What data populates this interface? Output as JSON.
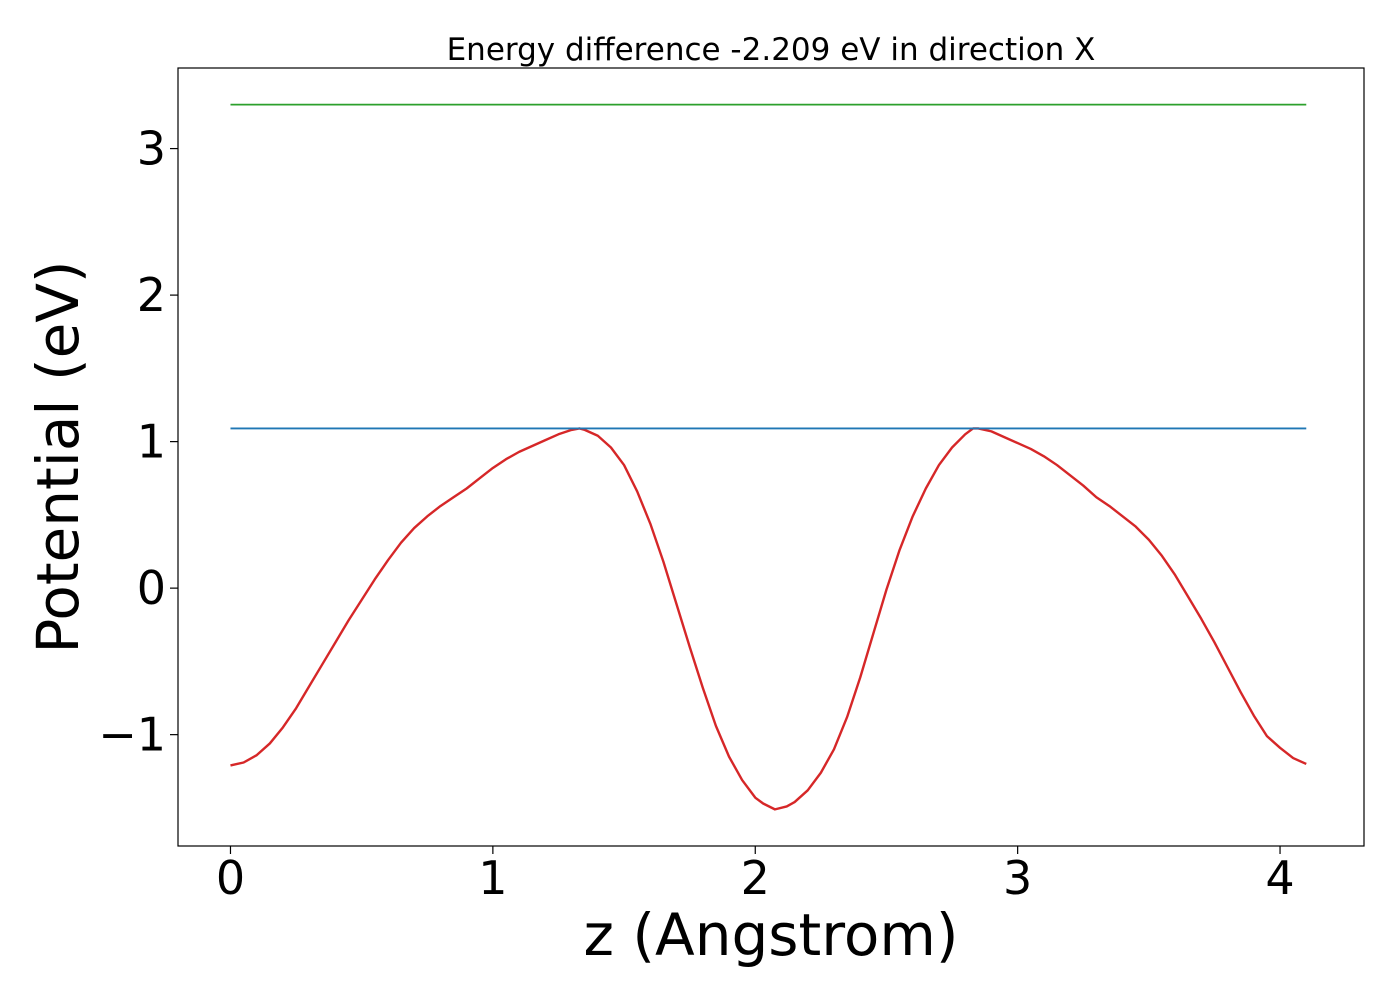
{
  "chart_data": {
    "type": "line",
    "title": "Energy difference -2.209 eV in direction X",
    "xlabel": "z (Angstrom)",
    "ylabel": "Potential (eV)",
    "xlim": [
      -0.2,
      4.32
    ],
    "ylim": [
      -1.76,
      3.55
    ],
    "xticks": [
      0,
      1,
      2,
      3,
      4
    ],
    "xtick_labels": [
      "0",
      "1",
      "2",
      "3",
      "4"
    ],
    "yticks": [
      -1,
      0,
      1,
      2,
      3
    ],
    "ytick_labels": [
      "−1",
      "0",
      "1",
      "2",
      "3"
    ],
    "grid": false,
    "legend": "none",
    "series": [
      {
        "color": "#d62728",
        "x": [
          0.0,
          0.05,
          0.1,
          0.15,
          0.2,
          0.25,
          0.3,
          0.35,
          0.4,
          0.45,
          0.5,
          0.55,
          0.6,
          0.65,
          0.7,
          0.75,
          0.8,
          0.85,
          0.9,
          0.95,
          1.0,
          1.05,
          1.1,
          1.15,
          1.2,
          1.25,
          1.3,
          1.33,
          1.35,
          1.4,
          1.45,
          1.5,
          1.55,
          1.6,
          1.65,
          1.7,
          1.75,
          1.8,
          1.85,
          1.9,
          1.95,
          2.0,
          2.03,
          2.075,
          2.12,
          2.15,
          2.2,
          2.25,
          2.3,
          2.35,
          2.4,
          2.45,
          2.5,
          2.55,
          2.6,
          2.65,
          2.7,
          2.75,
          2.8,
          2.83,
          2.85,
          2.9,
          2.95,
          3.0,
          3.05,
          3.1,
          3.15,
          3.2,
          3.25,
          3.3,
          3.35,
          3.4,
          3.45,
          3.5,
          3.55,
          3.6,
          3.65,
          3.7,
          3.75,
          3.8,
          3.85,
          3.9,
          3.95,
          4.0,
          4.05,
          4.1
        ],
        "y": [
          -1.21,
          -1.19,
          -1.14,
          -1.06,
          -0.95,
          -0.82,
          -0.67,
          -0.52,
          -0.37,
          -0.22,
          -0.08,
          0.06,
          0.19,
          0.31,
          0.41,
          0.49,
          0.56,
          0.62,
          0.68,
          0.75,
          0.82,
          0.88,
          0.93,
          0.97,
          1.01,
          1.05,
          1.08,
          1.09,
          1.08,
          1.04,
          0.96,
          0.84,
          0.66,
          0.44,
          0.18,
          -0.11,
          -0.4,
          -0.68,
          -0.94,
          -1.15,
          -1.31,
          -1.43,
          -1.47,
          -1.51,
          -1.49,
          -1.46,
          -1.38,
          -1.26,
          -1.1,
          -0.88,
          -0.61,
          -0.31,
          -0.01,
          0.26,
          0.49,
          0.68,
          0.84,
          0.96,
          1.05,
          1.09,
          1.09,
          1.07,
          1.03,
          0.99,
          0.95,
          0.9,
          0.84,
          0.77,
          0.7,
          0.62,
          0.56,
          0.49,
          0.42,
          0.33,
          0.22,
          0.09,
          -0.06,
          -0.21,
          -0.37,
          -0.54,
          -0.71,
          -0.87,
          -1.01,
          -1.09,
          -1.16,
          -1.2
        ]
      },
      {
        "color": "#1f77b4",
        "x": [
          0.0,
          4.1
        ],
        "y": [
          1.09,
          1.09
        ]
      },
      {
        "color": "#2ca02c",
        "x": [
          0.0,
          4.1
        ],
        "y": [
          3.3,
          3.3
        ]
      }
    ]
  }
}
